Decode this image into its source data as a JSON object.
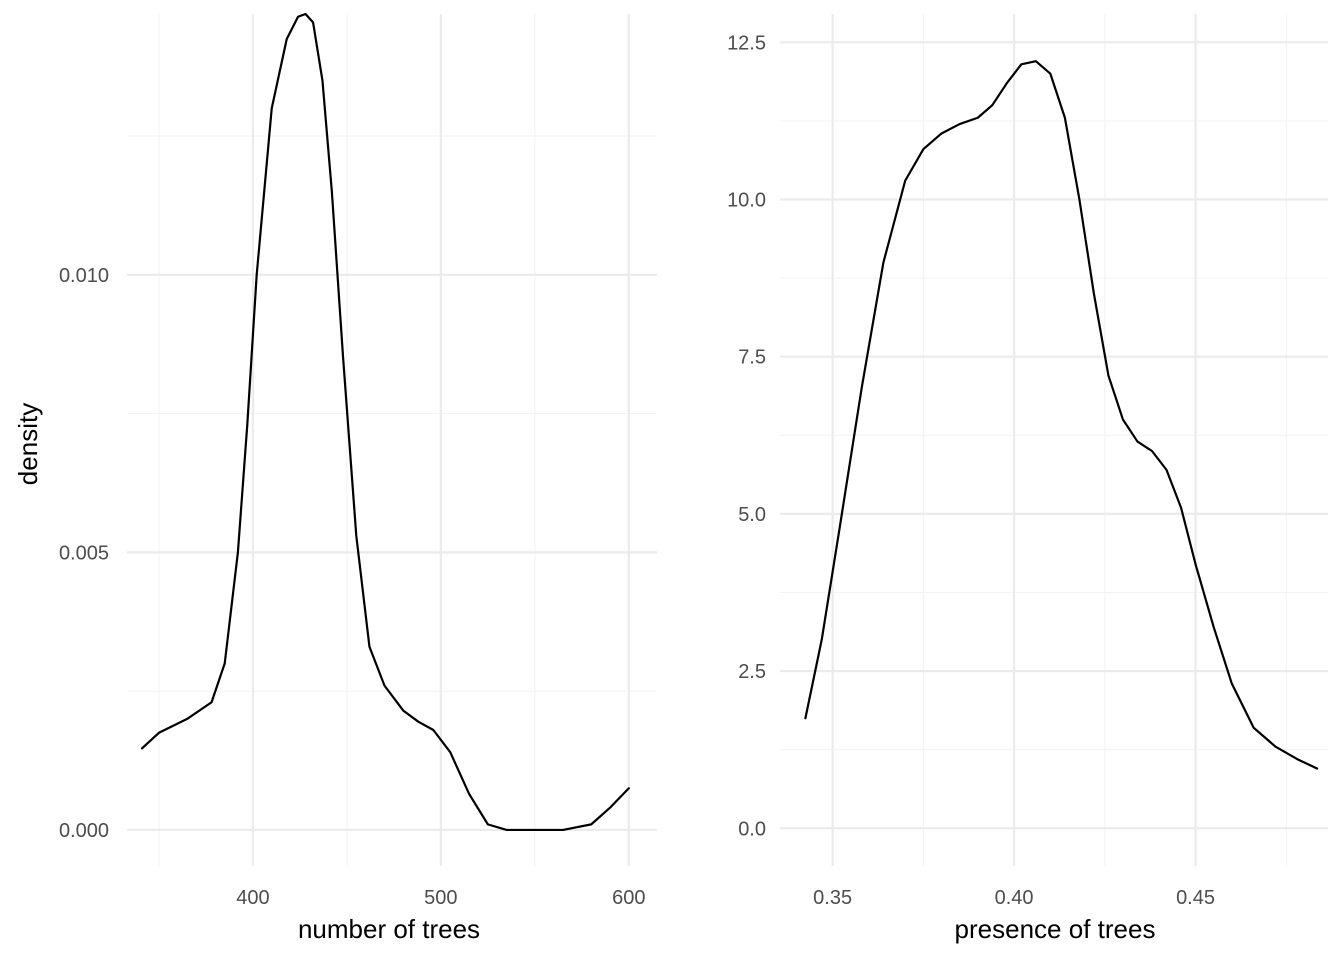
{
  "chart_data": [
    {
      "type": "line",
      "xlabel": "number of trees",
      "ylabel": "density",
      "xlim": [
        333,
        615
      ],
      "ylim": [
        -0.00065,
        0.0147
      ],
      "x_major_ticks": [
        400,
        500,
        600
      ],
      "x_minor_ticks": [
        350,
        450,
        550
      ],
      "x_tick_labels": [
        "400",
        "500",
        "600"
      ],
      "y_major_ticks": [
        0.0,
        0.005,
        0.01
      ],
      "y_minor_ticks": [
        0.0025,
        0.0075,
        0.0125
      ],
      "y_tick_labels": [
        "0.000",
        "0.005",
        "0.010"
      ],
      "grid": true,
      "series": [
        {
          "color": "#000000",
          "x": [
            341,
            350,
            365,
            378,
            385,
            392,
            397,
            402,
            410,
            418,
            424,
            428,
            432,
            437,
            442,
            448,
            455,
            462,
            470,
            480,
            488,
            496,
            505,
            515,
            525,
            535,
            550,
            565,
            580,
            590,
            600
          ],
          "y": [
            0.00147,
            0.00175,
            0.002,
            0.0023,
            0.003,
            0.005,
            0.0073,
            0.01,
            0.013,
            0.01425,
            0.01465,
            0.0147,
            0.01455,
            0.0135,
            0.0115,
            0.0085,
            0.0053,
            0.0033,
            0.0026,
            0.00215,
            0.00195,
            0.0018,
            0.0014,
            0.00065,
            0.0001,
            0.0,
            0.0,
            0.0,
            0.0001,
            0.0004,
            0.00075
          ]
        }
      ]
    },
    {
      "type": "line",
      "xlabel": "presence of trees",
      "ylim": [
        -0.6,
        12.95
      ],
      "xlim": [
        0.3355,
        0.4865
      ],
      "x_major_ticks": [
        0.35,
        0.4,
        0.45
      ],
      "x_minor_ticks": [
        0.375,
        0.425,
        0.475
      ],
      "x_tick_labels": [
        "0.35",
        "0.40",
        "0.45"
      ],
      "y_major_ticks": [
        0.0,
        2.5,
        5.0,
        7.5,
        10.0,
        12.5
      ],
      "y_minor_ticks": [
        1.25,
        3.75,
        6.25,
        8.75,
        11.25
      ],
      "y_tick_labels": [
        "0.0",
        "2.5",
        "5.0",
        "7.5",
        "10.0",
        "12.5"
      ],
      "grid": true,
      "series": [
        {
          "color": "#000000",
          "x": [
            0.3425,
            0.347,
            0.352,
            0.358,
            0.364,
            0.37,
            0.375,
            0.38,
            0.385,
            0.39,
            0.394,
            0.398,
            0.402,
            0.406,
            0.41,
            0.414,
            0.418,
            0.422,
            0.426,
            0.43,
            0.434,
            0.438,
            0.442,
            0.446,
            0.45,
            0.455,
            0.46,
            0.466,
            0.472,
            0.478,
            0.4835
          ],
          "y": [
            1.75,
            3.0,
            4.8,
            7.0,
            9.0,
            10.3,
            10.8,
            11.05,
            11.2,
            11.3,
            11.5,
            11.85,
            12.15,
            12.2,
            12.0,
            11.3,
            10.0,
            8.5,
            7.2,
            6.5,
            6.15,
            6.0,
            5.7,
            5.1,
            4.2,
            3.2,
            2.3,
            1.6,
            1.3,
            1.1,
            0.95
          ]
        }
      ]
    }
  ]
}
